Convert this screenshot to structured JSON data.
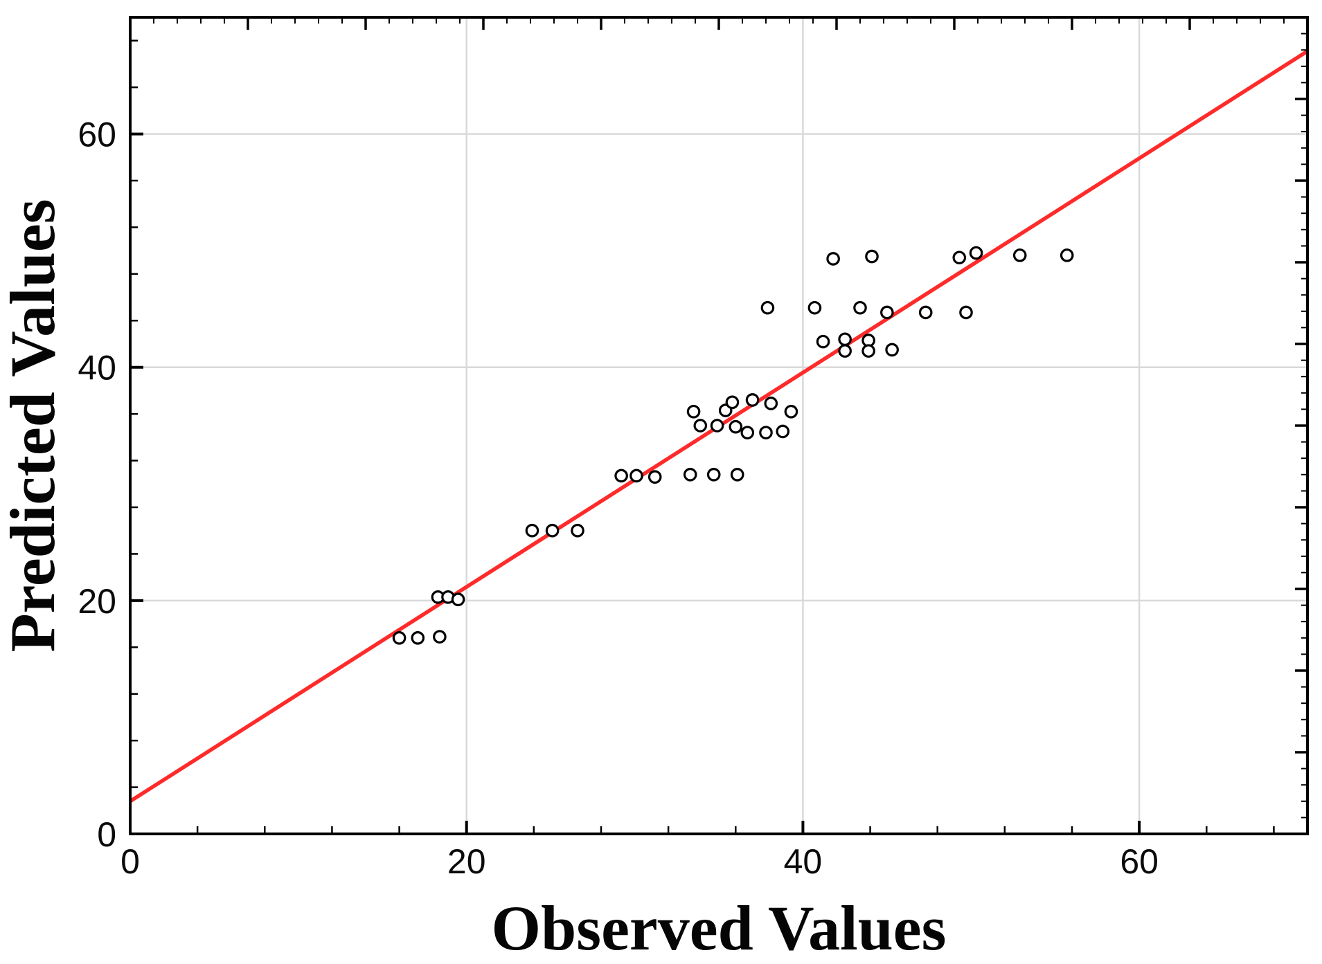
{
  "chart_data": {
    "type": "scatter",
    "title": "",
    "xlabel": "Observed Values",
    "ylabel": "Predicted Values",
    "xlim": [
      0,
      70
    ],
    "ylim": [
      0,
      70
    ],
    "x_major_ticks": [
      0,
      20,
      40,
      60
    ],
    "y_major_ticks": [
      0,
      20,
      40,
      60
    ],
    "x_tick_labels": [
      "0",
      "20",
      "40",
      "60"
    ],
    "y_tick_labels": [
      "0",
      "20",
      "40",
      "60"
    ],
    "minor_tick_step": 4,
    "opposite_axis_minor_step": 1.4,
    "opposite_axis_major_step": 7,
    "grid": true,
    "legend": "none",
    "marker": "open-circle",
    "points": [
      [
        16.0,
        16.8
      ],
      [
        17.1,
        16.8
      ],
      [
        18.4,
        16.9
      ],
      [
        18.3,
        20.3
      ],
      [
        18.9,
        20.3
      ],
      [
        19.5,
        20.1
      ],
      [
        23.9,
        26.0
      ],
      [
        25.1,
        26.0
      ],
      [
        26.6,
        26.0
      ],
      [
        29.2,
        30.7
      ],
      [
        30.1,
        30.7
      ],
      [
        31.2,
        30.6
      ],
      [
        33.3,
        30.8
      ],
      [
        34.7,
        30.8
      ],
      [
        36.1,
        30.8
      ],
      [
        33.5,
        36.2
      ],
      [
        33.9,
        35.0
      ],
      [
        34.9,
        35.0
      ],
      [
        35.4,
        36.3
      ],
      [
        35.8,
        37.0
      ],
      [
        37.0,
        37.2
      ],
      [
        38.1,
        36.9
      ],
      [
        39.3,
        36.2
      ],
      [
        36.0,
        34.9
      ],
      [
        36.7,
        34.4
      ],
      [
        37.8,
        34.4
      ],
      [
        38.8,
        34.5
      ],
      [
        37.9,
        45.1
      ],
      [
        40.7,
        45.1
      ],
      [
        43.4,
        45.1
      ],
      [
        45.0,
        44.7
      ],
      [
        47.3,
        44.7
      ],
      [
        49.7,
        44.7
      ],
      [
        41.2,
        42.2
      ],
      [
        42.5,
        42.4
      ],
      [
        42.5,
        41.4
      ],
      [
        43.9,
        42.3
      ],
      [
        43.9,
        41.4
      ],
      [
        45.3,
        41.5
      ],
      [
        41.8,
        49.3
      ],
      [
        44.1,
        49.5
      ],
      [
        49.3,
        49.4
      ],
      [
        50.3,
        49.8
      ],
      [
        52.9,
        49.6
      ],
      [
        55.7,
        49.6
      ]
    ],
    "fit_line": {
      "x1": 0,
      "y1": 2.8,
      "x2": 70,
      "y2": 67.1
    },
    "colors": {
      "line": "#ff2b2b",
      "grid": "#d9d9d9",
      "frame": "#000000",
      "point_stroke": "#000000",
      "point_fill": "#ffffff",
      "label": "#0a0a0a"
    }
  }
}
